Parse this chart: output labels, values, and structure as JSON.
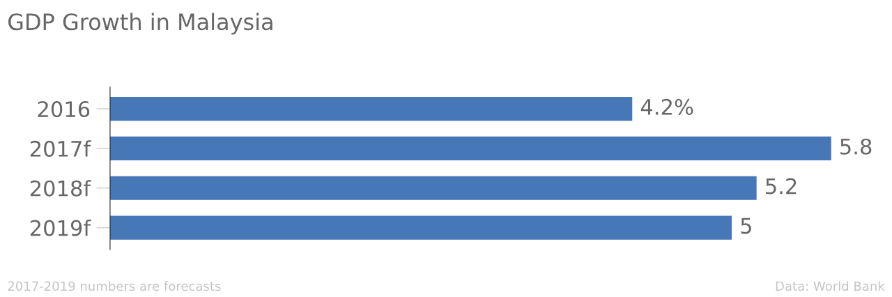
{
  "chart_data": {
    "type": "bar",
    "orientation": "horizontal",
    "title": "GDP Growth in Malaysia",
    "categories": [
      "2016",
      "2017f",
      "2018f",
      "2019f"
    ],
    "values": [
      4.2,
      5.8,
      5.2,
      5
    ],
    "value_labels": [
      "4.2%",
      "5.8",
      "5.2",
      "5"
    ],
    "color": "#4677b7",
    "tick_labels": "y",
    "grid": false,
    "legend": false,
    "annotations": [
      "2017-2019 numbers are forecasts",
      "Data: World Bank"
    ]
  }
}
